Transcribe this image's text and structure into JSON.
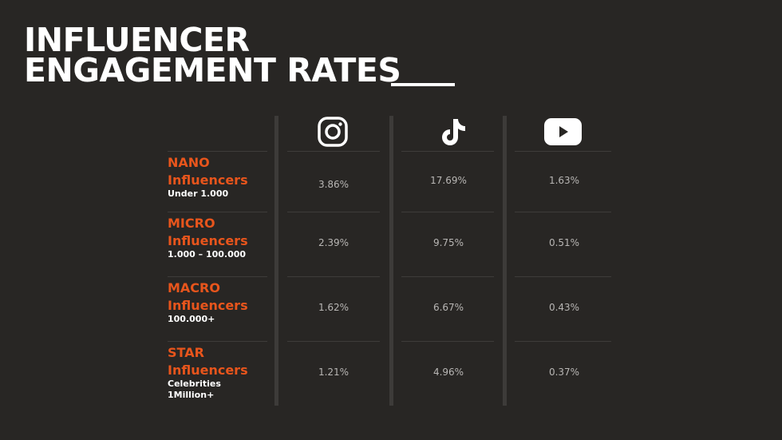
{
  "header": {
    "title": [
      "INFLUENCER",
      "ENGAGEMENT RATES"
    ]
  },
  "table": {
    "rows": [
      {
        "tier": "NANO",
        "label": "Influencers",
        "note": [
          "Under 1.000"
        ],
        "values": [
          "3.86%",
          "17.69%",
          "1.63%"
        ]
      },
      {
        "tier": "MICRO",
        "label": "Influencers",
        "note": [
          "1.000 – 100.000"
        ],
        "values": [
          "2.39%",
          "9.75%",
          "0.51%"
        ]
      },
      {
        "tier": "MACRO",
        "label": "Influencers",
        "note": [
          "100.000+"
        ],
        "values": [
          "1.62%",
          "6.67%",
          "0.43%"
        ]
      },
      {
        "tier": "STAR",
        "label": "Influencers",
        "note": [
          "Celebrities",
          "1Million+"
        ],
        "values": [
          "1.21%",
          "4.96%",
          "0.37%"
        ]
      }
    ]
  }
}
